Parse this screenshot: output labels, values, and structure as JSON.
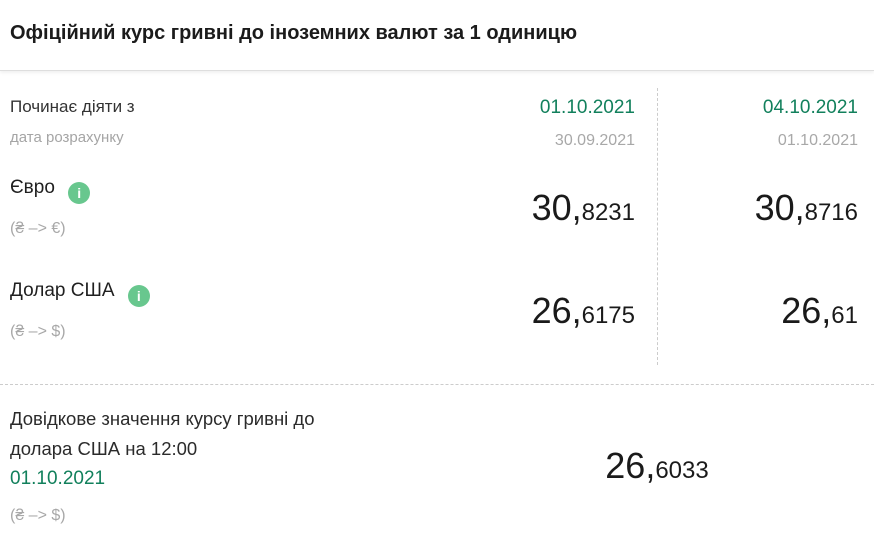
{
  "title": "Офіційний курс гривні до іноземних валют за 1 одиницю",
  "colors": {
    "accent_green": "#12805c",
    "info_icon_green": "#68c78e",
    "muted_gray": "#a8a8a8",
    "dashed_divider": "#cccccc"
  },
  "table": {
    "header": {
      "label": "Починає діяти з",
      "sublabel": "дата розрахунку",
      "columns": [
        {
          "effective_date": "01.10.2021",
          "calc_date": "30.09.2021"
        },
        {
          "effective_date": "04.10.2021",
          "calc_date": "01.10.2021"
        }
      ]
    },
    "rows": [
      {
        "currency": "Євро",
        "pair": "(₴ –> €)",
        "info_icon": "i",
        "values": [
          {
            "int": "30,",
            "frac": "8231"
          },
          {
            "int": "30,",
            "frac": "8716"
          }
        ]
      },
      {
        "currency": "Долар США",
        "pair": "(₴ –> $)",
        "info_icon": "i",
        "values": [
          {
            "int": "26,",
            "frac": "6175"
          },
          {
            "int": "26,",
            "frac": "61"
          }
        ]
      }
    ]
  },
  "reference": {
    "line1": "Довідкове значення курсу гривні до",
    "line2": "долара США на 12:00",
    "date": "01.10.2021",
    "pair": "(₴ –> $)",
    "value": {
      "int": "26,",
      "frac": "6033"
    }
  }
}
